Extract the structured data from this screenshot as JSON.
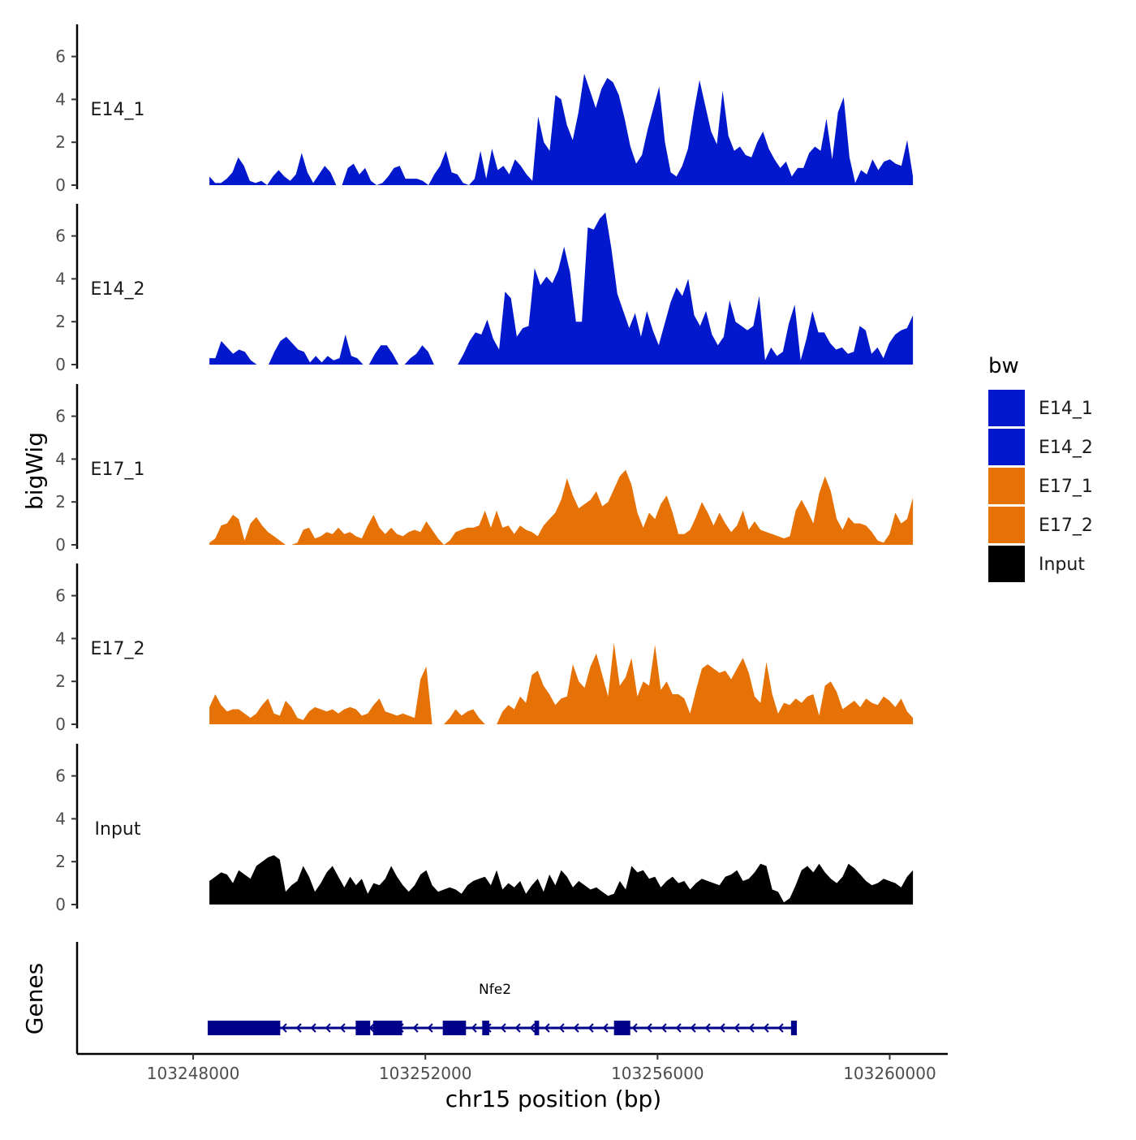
{
  "chart_data": {
    "type": "area",
    "title": "",
    "ylabel": "bigWig",
    "genes_label": "Genes",
    "xlabel": "chr15 position (bp)",
    "xlim": [
      103246000,
      103261000
    ],
    "data_range": [
      103248280,
      103260400
    ],
    "x_ticks": [
      103248000,
      103252000,
      103256000,
      103260000
    ],
    "x_tick_labels": [
      "103248000",
      "103252000",
      "103256000",
      "103260000"
    ],
    "ylim": [
      0,
      7.5
    ],
    "y_ticks": [
      0,
      2,
      4,
      6
    ],
    "y_tick_labels": [
      "0",
      "2",
      "4",
      "6"
    ],
    "legend": {
      "title": "bw",
      "position": "right",
      "entries": [
        {
          "label": "E14_1",
          "color": "#0118CC"
        },
        {
          "label": "E14_2",
          "color": "#0118CC"
        },
        {
          "label": "E17_1",
          "color": "#E67205"
        },
        {
          "label": "E17_2",
          "color": "#E67205"
        },
        {
          "label": "Input",
          "color": "#000000"
        }
      ]
    },
    "series": [
      {
        "name": "E14_1",
        "color": "#0118CC",
        "values": [
          0.4,
          0.1,
          0.1,
          0.3,
          0.6,
          1.3,
          0.9,
          0.2,
          0.1,
          0.2,
          0.0,
          0.4,
          0.7,
          0.4,
          0.2,
          0.5,
          1.5,
          0.6,
          0.1,
          0.5,
          0.9,
          0.6,
          0.0,
          0.0,
          0.8,
          1.0,
          0.5,
          0.8,
          0.2,
          0.0,
          0.1,
          0.4,
          0.8,
          0.9,
          0.3,
          0.3,
          0.3,
          0.2,
          0.0,
          0.5,
          0.9,
          1.6,
          0.6,
          0.5,
          0.1,
          0.0,
          0.3,
          1.6,
          0.3,
          1.7,
          0.7,
          0.9,
          0.5,
          1.2,
          0.9,
          0.5,
          0.2,
          3.2,
          2.0,
          1.6,
          4.2,
          4.0,
          2.8,
          2.1,
          3.4,
          5.2,
          4.4,
          3.6,
          4.5,
          5.0,
          4.8,
          4.2,
          3.1,
          1.8,
          1.0,
          1.4,
          2.6,
          3.6,
          4.6,
          2.0,
          0.6,
          0.4,
          0.9,
          1.7,
          3.4,
          4.9,
          3.7,
          2.5,
          1.9,
          4.4,
          2.3,
          1.6,
          1.8,
          1.4,
          1.3,
          2.0,
          2.5,
          1.7,
          1.2,
          0.8,
          1.1,
          0.4,
          0.8,
          0.8,
          1.5,
          1.8,
          1.6,
          3.1,
          1.2,
          3.4,
          4.1,
          1.3,
          0.1,
          0.7,
          0.5,
          1.2,
          0.7,
          1.1,
          1.2,
          1.0,
          0.9,
          2.1,
          0.4
        ]
      },
      {
        "name": "E14_2",
        "color": "#0118CC",
        "values": [
          0.3,
          0.3,
          1.1,
          0.8,
          0.5,
          0.7,
          0.6,
          0.2,
          0.0,
          0.0,
          0.0,
          0.6,
          1.1,
          1.3,
          1.0,
          0.7,
          0.6,
          0.1,
          0.4,
          0.1,
          0.4,
          0.2,
          0.3,
          1.4,
          0.4,
          0.3,
          0.0,
          0.0,
          0.5,
          0.9,
          0.9,
          0.5,
          0.0,
          0.0,
          0.3,
          0.5,
          0.9,
          0.6,
          0.0,
          0.0,
          0.0,
          0.0,
          0.0,
          0.5,
          1.1,
          1.5,
          1.4,
          2.1,
          1.2,
          0.7,
          3.4,
          3.1,
          1.3,
          1.7,
          1.8,
          4.5,
          3.7,
          4.1,
          3.8,
          4.4,
          5.5,
          4.3,
          2.0,
          2.0,
          6.4,
          6.3,
          6.8,
          7.1,
          5.4,
          3.3,
          2.5,
          1.7,
          2.4,
          1.3,
          2.5,
          1.6,
          0.9,
          1.9,
          2.9,
          3.6,
          3.2,
          4.0,
          2.3,
          1.8,
          2.5,
          1.4,
          0.9,
          1.3,
          3.0,
          2.0,
          1.8,
          1.6,
          1.8,
          3.2,
          0.2,
          0.8,
          0.4,
          0.6,
          1.9,
          2.8,
          0.2,
          1.2,
          2.5,
          1.5,
          1.5,
          1.0,
          0.7,
          0.8,
          0.5,
          0.6,
          1.8,
          1.6,
          0.5,
          0.8,
          0.3,
          1.0,
          1.4,
          1.6,
          1.7,
          2.3
        ]
      },
      {
        "name": "E17_1",
        "color": "#E67205",
        "values": [
          0.1,
          0.3,
          0.9,
          1.0,
          1.4,
          1.2,
          0.2,
          1.0,
          1.3,
          0.9,
          0.6,
          0.4,
          0.2,
          0.0,
          0.0,
          0.1,
          0.7,
          0.8,
          0.3,
          0.4,
          0.6,
          0.5,
          0.8,
          0.5,
          0.6,
          0.4,
          0.3,
          0.9,
          1.4,
          0.8,
          0.5,
          0.8,
          0.5,
          0.4,
          0.6,
          0.7,
          0.6,
          1.1,
          0.7,
          0.3,
          0.0,
          0.2,
          0.6,
          0.7,
          0.8,
          0.8,
          0.9,
          1.6,
          0.8,
          1.6,
          0.8,
          0.9,
          0.5,
          0.9,
          0.7,
          0.6,
          0.4,
          0.9,
          1.2,
          1.5,
          2.1,
          3.1,
          2.3,
          1.7,
          1.9,
          2.1,
          2.5,
          1.8,
          2.0,
          2.6,
          3.2,
          3.5,
          2.8,
          1.5,
          0.8,
          1.5,
          1.2,
          1.9,
          2.3,
          1.5,
          0.5,
          0.5,
          0.7,
          1.3,
          2.0,
          1.5,
          0.9,
          1.5,
          1.0,
          0.6,
          0.9,
          1.6,
          0.7,
          1.1,
          0.7,
          0.6,
          0.5,
          0.4,
          0.3,
          0.4,
          1.6,
          2.1,
          1.6,
          1.0,
          2.4,
          3.2,
          2.5,
          1.2,
          0.7,
          1.3,
          1.0,
          1.0,
          0.9,
          0.6,
          0.2,
          0.1,
          0.5,
          1.5,
          1.0,
          1.2,
          2.2
        ]
      },
      {
        "name": "E17_2",
        "color": "#E67205",
        "values": [
          0.8,
          1.4,
          0.9,
          0.6,
          0.7,
          0.7,
          0.5,
          0.3,
          0.5,
          0.9,
          1.2,
          0.5,
          0.4,
          1.1,
          0.8,
          0.3,
          0.2,
          0.6,
          0.8,
          0.7,
          0.6,
          0.7,
          0.5,
          0.7,
          0.8,
          0.7,
          0.4,
          0.5,
          0.9,
          1.2,
          0.6,
          0.5,
          0.4,
          0.5,
          0.4,
          0.3,
          2.1,
          2.7,
          0.0,
          0.0,
          0.0,
          0.3,
          0.7,
          0.4,
          0.6,
          0.7,
          0.3,
          0.0,
          0.0,
          0.0,
          0.6,
          0.9,
          0.7,
          1.3,
          1.0,
          2.3,
          2.5,
          1.8,
          1.4,
          0.9,
          1.2,
          1.3,
          2.8,
          2.0,
          1.7,
          2.7,
          3.3,
          2.3,
          1.3,
          3.8,
          1.8,
          2.2,
          3.1,
          1.3,
          2.0,
          1.8,
          3.7,
          1.6,
          2.0,
          1.4,
          1.4,
          1.2,
          0.5,
          1.6,
          2.6,
          2.8,
          2.6,
          2.4,
          2.5,
          2.1,
          2.6,
          3.1,
          2.4,
          1.3,
          1.0,
          2.9,
          1.4,
          0.5,
          1.0,
          0.9,
          1.2,
          1.0,
          1.3,
          1.4,
          0.4,
          1.8,
          2.0,
          1.5,
          0.7,
          0.9,
          1.1,
          0.8,
          1.2,
          1.0,
          0.9,
          1.3,
          1.1,
          0.8,
          1.2,
          0.6,
          0.3
        ]
      },
      {
        "name": "Input",
        "color": "#000000",
        "values": [
          1.1,
          1.3,
          1.5,
          1.4,
          1.0,
          1.6,
          1.4,
          1.2,
          1.8,
          2.0,
          2.2,
          2.3,
          2.1,
          0.6,
          0.9,
          1.1,
          1.8,
          1.3,
          0.6,
          1.0,
          1.5,
          1.8,
          1.3,
          0.8,
          1.3,
          0.9,
          1.2,
          0.5,
          1.0,
          0.9,
          1.2,
          1.8,
          1.3,
          0.9,
          0.6,
          0.9,
          1.4,
          1.6,
          0.9,
          0.6,
          0.7,
          0.8,
          0.7,
          0.5,
          0.9,
          1.1,
          1.2,
          1.3,
          0.9,
          1.6,
          0.7,
          1.0,
          0.8,
          1.1,
          0.5,
          0.9,
          1.2,
          0.6,
          1.4,
          0.9,
          1.6,
          1.3,
          0.8,
          1.1,
          0.9,
          0.7,
          0.8,
          0.6,
          0.4,
          0.5,
          1.1,
          0.7,
          1.8,
          1.5,
          1.6,
          1.2,
          1.3,
          0.8,
          1.1,
          1.3,
          1.0,
          1.1,
          0.7,
          1.0,
          1.2,
          1.1,
          1.0,
          0.9,
          1.3,
          1.4,
          1.6,
          1.1,
          1.2,
          1.5,
          1.9,
          1.8,
          0.7,
          0.6,
          0.1,
          0.3,
          0.9,
          1.6,
          1.8,
          1.5,
          1.9,
          1.5,
          1.2,
          1.0,
          1.3,
          1.9,
          1.7,
          1.4,
          1.1,
          0.9,
          1.0,
          1.2,
          1.1,
          1.0,
          0.8,
          1.3,
          1.6
        ]
      }
    ],
    "gene_track": {
      "gene_name": "Nfe2",
      "strand": "-",
      "color": "#00008B",
      "gene_range": [
        103248250,
        103258400
      ],
      "exons": [
        {
          "start": 103248250,
          "end": 103249500
        },
        {
          "start": 103250800,
          "end": 103251050
        },
        {
          "start": 103251100,
          "end": 103251600
        },
        {
          "start": 103252300,
          "end": 103252700
        },
        {
          "start": 103252980,
          "end": 103253100
        },
        {
          "start": 103253880,
          "end": 103253960
        },
        {
          "start": 103255250,
          "end": 103255530
        },
        {
          "start": 103258300,
          "end": 103258400
        }
      ]
    }
  }
}
